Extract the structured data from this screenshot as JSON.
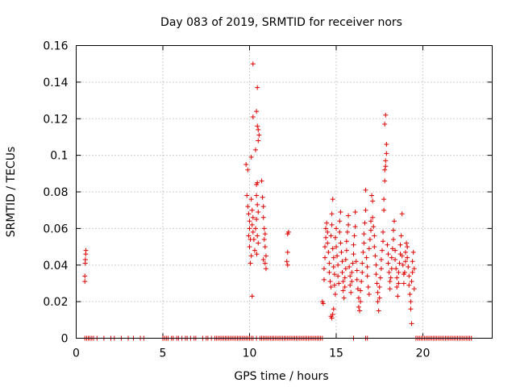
{
  "chart_data": {
    "type": "scatter",
    "title": "Day 083 of 2019, SRMTID for receiver nors",
    "xlabel": "GPS time / hours",
    "ylabel": "SRMTID / TECUs",
    "xlim": [
      0,
      24
    ],
    "ylim": [
      0,
      0.16
    ],
    "xticks": [
      0,
      5,
      10,
      15,
      20
    ],
    "yticks": [
      0,
      0.02,
      0.04,
      0.06,
      0.08,
      0.1,
      0.12,
      0.14,
      0.16
    ],
    "xtick_labels": [
      "0",
      "5",
      "10",
      "15",
      "20"
    ],
    "ytick_labels": [
      "0",
      "0.02",
      "0.04",
      "0.06",
      "0.08",
      "0.1",
      "0.12",
      "0.14",
      "0.16"
    ],
    "grid": true,
    "marker": "+",
    "series_color": "#dd0000",
    "series": [
      {
        "name": "SRMTID",
        "points": [
          [
            0.5,
            0.031
          ],
          [
            0.5,
            0.034
          ],
          [
            0.52,
            0.041
          ],
          [
            0.55,
            0.046
          ],
          [
            0.56,
            0.048
          ],
          [
            0.53,
            0.043
          ],
          [
            9.8,
            0.095
          ],
          [
            9.9,
            0.092
          ],
          [
            9.85,
            0.078
          ],
          [
            9.9,
            0.072
          ],
          [
            9.95,
            0.068
          ],
          [
            10.0,
            0.064
          ],
          [
            10.0,
            0.06
          ],
          [
            9.95,
            0.056
          ],
          [
            10.05,
            0.054
          ],
          [
            10.0,
            0.05
          ],
          [
            10.1,
            0.045
          ],
          [
            10.05,
            0.041
          ],
          [
            10.1,
            0.076
          ],
          [
            10.15,
            0.07
          ],
          [
            10.2,
            0.066
          ],
          [
            10.15,
            0.062
          ],
          [
            10.2,
            0.058
          ],
          [
            10.25,
            0.054
          ],
          [
            10.3,
            0.048
          ],
          [
            10.1,
            0.099
          ],
          [
            10.2,
            0.121
          ],
          [
            10.2,
            0.15
          ],
          [
            10.15,
            0.023
          ],
          [
            10.35,
            0.103
          ],
          [
            10.4,
            0.084
          ],
          [
            10.45,
            0.085
          ],
          [
            10.4,
            0.078
          ],
          [
            10.45,
            0.073
          ],
          [
            10.5,
            0.069
          ],
          [
            10.4,
            0.065
          ],
          [
            10.35,
            0.06
          ],
          [
            10.45,
            0.056
          ],
          [
            10.5,
            0.052
          ],
          [
            10.42,
            0.046
          ],
          [
            10.4,
            0.124
          ],
          [
            10.45,
            0.137
          ],
          [
            10.45,
            0.116
          ],
          [
            10.5,
            0.114
          ],
          [
            10.55,
            0.111
          ],
          [
            10.5,
            0.108
          ],
          [
            10.7,
            0.086
          ],
          [
            10.75,
            0.077
          ],
          [
            10.8,
            0.072
          ],
          [
            10.8,
            0.066
          ],
          [
            10.85,
            0.06
          ],
          [
            10.9,
            0.057
          ],
          [
            10.85,
            0.054
          ],
          [
            10.9,
            0.05
          ],
          [
            10.95,
            0.045
          ],
          [
            10.9,
            0.041
          ],
          [
            10.95,
            0.038
          ],
          [
            10.8,
            0.043
          ],
          [
            12.2,
            0.057
          ],
          [
            12.25,
            0.058
          ],
          [
            12.2,
            0.047
          ],
          [
            12.15,
            0.042
          ],
          [
            12.2,
            0.04
          ],
          [
            14.2,
            0.02
          ],
          [
            14.25,
            0.019
          ],
          [
            14.3,
            0.032
          ],
          [
            14.3,
            0.038
          ],
          [
            14.35,
            0.044
          ],
          [
            14.35,
            0.05
          ],
          [
            14.4,
            0.055
          ],
          [
            14.4,
            0.06
          ],
          [
            14.45,
            0.063
          ],
          [
            14.5,
            0.058
          ],
          [
            14.5,
            0.052
          ],
          [
            14.55,
            0.047
          ],
          [
            14.6,
            0.041
          ],
          [
            14.6,
            0.036
          ],
          [
            14.65,
            0.031
          ],
          [
            14.7,
            0.028
          ],
          [
            14.7,
            0.056
          ],
          [
            14.75,
            0.062
          ],
          [
            14.75,
            0.068
          ],
          [
            14.8,
            0.076
          ],
          [
            14.8,
            0.049
          ],
          [
            14.85,
            0.044
          ],
          [
            14.85,
            0.039
          ],
          [
            14.9,
            0.035
          ],
          [
            14.9,
            0.029
          ],
          [
            14.95,
            0.024
          ],
          [
            14.95,
            0.055
          ],
          [
            15.0,
            0.06
          ],
          [
            15.0,
            0.05
          ],
          [
            14.7,
            0.012
          ],
          [
            14.75,
            0.011
          ],
          [
            14.8,
            0.013
          ],
          [
            14.85,
            0.016
          ],
          [
            15.05,
            0.045
          ],
          [
            15.1,
            0.04
          ],
          [
            15.1,
            0.034
          ],
          [
            15.15,
            0.03
          ],
          [
            15.2,
            0.058
          ],
          [
            15.2,
            0.064
          ],
          [
            15.25,
            0.069
          ],
          [
            15.25,
            0.052
          ],
          [
            15.3,
            0.047
          ],
          [
            15.35,
            0.042
          ],
          [
            15.35,
            0.036
          ],
          [
            15.4,
            0.031
          ],
          [
            15.4,
            0.026
          ],
          [
            15.45,
            0.022
          ],
          [
            15.5,
            0.028
          ],
          [
            15.5,
            0.033
          ],
          [
            15.55,
            0.038
          ],
          [
            15.55,
            0.043
          ],
          [
            15.6,
            0.048
          ],
          [
            15.6,
            0.053
          ],
          [
            15.65,
            0.058
          ],
          [
            15.7,
            0.062
          ],
          [
            15.7,
            0.067
          ],
          [
            15.75,
            0.039
          ],
          [
            15.8,
            0.034
          ],
          [
            15.8,
            0.029
          ],
          [
            15.85,
            0.025
          ],
          [
            15.9,
            0.031
          ],
          [
            15.9,
            0.036
          ],
          [
            15.95,
            0.041
          ],
          [
            16.0,
            0.046
          ],
          [
            16.0,
            0.051
          ],
          [
            16.05,
            0.056
          ],
          [
            16.1,
            0.061
          ],
          [
            16.1,
            0.069
          ],
          [
            16.15,
            0.042
          ],
          [
            16.2,
            0.037
          ],
          [
            16.2,
            0.032
          ],
          [
            16.25,
            0.027
          ],
          [
            16.3,
            0.022
          ],
          [
            16.3,
            0.017
          ],
          [
            16.35,
            0.015
          ],
          [
            16.4,
            0.02
          ],
          [
            16.4,
            0.026
          ],
          [
            16.45,
            0.031
          ],
          [
            16.5,
            0.036
          ],
          [
            16.5,
            0.041
          ],
          [
            16.55,
            0.047
          ],
          [
            16.6,
            0.052
          ],
          [
            16.6,
            0.057
          ],
          [
            16.65,
            0.063
          ],
          [
            16.7,
            0.081
          ],
          [
            16.7,
            0.07
          ],
          [
            16.75,
            0.044
          ],
          [
            16.8,
            0.039
          ],
          [
            16.8,
            0.034
          ],
          [
            16.85,
            0.028
          ],
          [
            16.9,
            0.024
          ],
          [
            16.9,
            0.049
          ],
          [
            16.95,
            0.054
          ],
          [
            17.0,
            0.059
          ],
          [
            17.0,
            0.064
          ],
          [
            17.05,
            0.078
          ],
          [
            17.1,
            0.075
          ],
          [
            17.1,
            0.066
          ],
          [
            17.15,
            0.061
          ],
          [
            17.2,
            0.056
          ],
          [
            17.2,
            0.05
          ],
          [
            17.25,
            0.045
          ],
          [
            17.3,
            0.04
          ],
          [
            17.3,
            0.035
          ],
          [
            17.35,
            0.03
          ],
          [
            17.4,
            0.025
          ],
          [
            17.4,
            0.02
          ],
          [
            17.45,
            0.015
          ],
          [
            17.5,
            0.022
          ],
          [
            17.5,
            0.028
          ],
          [
            17.55,
            0.033
          ],
          [
            17.6,
            0.038
          ],
          [
            17.6,
            0.043
          ],
          [
            17.65,
            0.048
          ],
          [
            17.7,
            0.053
          ],
          [
            17.7,
            0.058
          ],
          [
            17.75,
            0.07
          ],
          [
            17.75,
            0.076
          ],
          [
            17.8,
            0.086
          ],
          [
            17.8,
            0.092
          ],
          [
            17.85,
            0.097
          ],
          [
            17.85,
            0.094
          ],
          [
            17.9,
            0.101
          ],
          [
            17.9,
            0.106
          ],
          [
            17.8,
            0.117
          ],
          [
            17.85,
            0.122
          ],
          [
            17.95,
            0.051
          ],
          [
            18.0,
            0.046
          ],
          [
            18.0,
            0.041
          ],
          [
            18.05,
            0.036
          ],
          [
            18.1,
            0.031
          ],
          [
            18.1,
            0.027
          ],
          [
            18.15,
            0.033
          ],
          [
            18.2,
            0.038
          ],
          [
            18.2,
            0.044
          ],
          [
            18.25,
            0.049
          ],
          [
            18.3,
            0.054
          ],
          [
            18.3,
            0.059
          ],
          [
            18.35,
            0.064
          ],
          [
            18.4,
            0.048
          ],
          [
            18.4,
            0.043
          ],
          [
            18.45,
            0.038
          ],
          [
            18.5,
            0.033
          ],
          [
            18.5,
            0.028
          ],
          [
            18.55,
            0.023
          ],
          [
            18.6,
            0.03
          ],
          [
            18.6,
            0.036
          ],
          [
            18.65,
            0.041
          ],
          [
            18.7,
            0.046
          ],
          [
            18.7,
            0.051
          ],
          [
            18.75,
            0.056
          ],
          [
            18.8,
            0.068
          ],
          [
            18.8,
            0.045
          ],
          [
            18.85,
            0.04
          ],
          [
            18.9,
            0.035
          ],
          [
            18.9,
            0.03
          ],
          [
            18.95,
            0.036
          ],
          [
            19.0,
            0.042
          ],
          [
            19.0,
            0.047
          ],
          [
            19.05,
            0.052
          ],
          [
            19.1,
            0.05
          ],
          [
            19.1,
            0.044
          ],
          [
            19.15,
            0.039
          ],
          [
            19.2,
            0.034
          ],
          [
            19.2,
            0.029
          ],
          [
            19.25,
            0.024
          ],
          [
            19.3,
            0.02
          ],
          [
            19.3,
            0.016
          ],
          [
            19.35,
            0.031
          ],
          [
            19.4,
            0.036
          ],
          [
            19.4,
            0.042
          ],
          [
            19.45,
            0.047
          ],
          [
            19.5,
            0.038
          ],
          [
            19.5,
            0.027
          ],
          [
            19.35,
            0.008
          ]
        ],
        "zero_points_x": [
          0.5,
          0.6,
          0.7,
          0.8,
          0.9,
          1.0,
          1.2,
          1.6,
          2.0,
          2.2,
          2.6,
          3.0,
          3.3,
          3.7,
          3.9,
          5.0,
          5.1,
          5.2,
          5.3,
          5.5,
          5.6,
          5.8,
          5.9,
          6.1,
          6.3,
          6.4,
          6.6,
          6.8,
          6.9,
          7.3,
          7.5,
          7.6,
          7.8,
          8.0,
          8.1,
          8.2,
          8.3,
          8.4,
          8.5,
          8.6,
          8.7,
          8.8,
          8.9,
          9.0,
          9.1,
          9.2,
          9.3,
          9.4,
          9.5,
          9.6,
          9.7,
          9.8,
          9.9,
          10.0,
          10.1,
          10.2,
          10.4,
          10.6,
          10.7,
          10.8,
          10.9,
          11.0,
          11.1,
          11.2,
          11.3,
          11.4,
          11.5,
          11.6,
          11.7,
          11.8,
          11.9,
          12.0,
          12.1,
          12.2,
          12.3,
          12.4,
          12.5,
          12.6,
          12.7,
          12.8,
          12.9,
          13.0,
          13.1,
          13.2,
          13.3,
          13.4,
          13.5,
          13.6,
          13.7,
          13.8,
          13.9,
          14.0,
          14.1,
          14.2,
          16.0,
          16.7,
          16.8,
          19.6,
          19.7,
          19.8,
          19.9,
          20.0,
          20.1,
          20.2,
          20.3,
          20.4,
          20.5,
          20.6,
          20.7,
          20.8,
          20.9,
          21.0,
          21.1,
          21.2,
          21.3,
          21.4,
          21.5,
          21.6,
          21.7,
          21.8,
          21.9,
          22.0,
          22.1,
          22.2,
          22.3,
          22.4,
          22.5,
          22.6,
          22.7,
          22.8
        ]
      }
    ]
  }
}
